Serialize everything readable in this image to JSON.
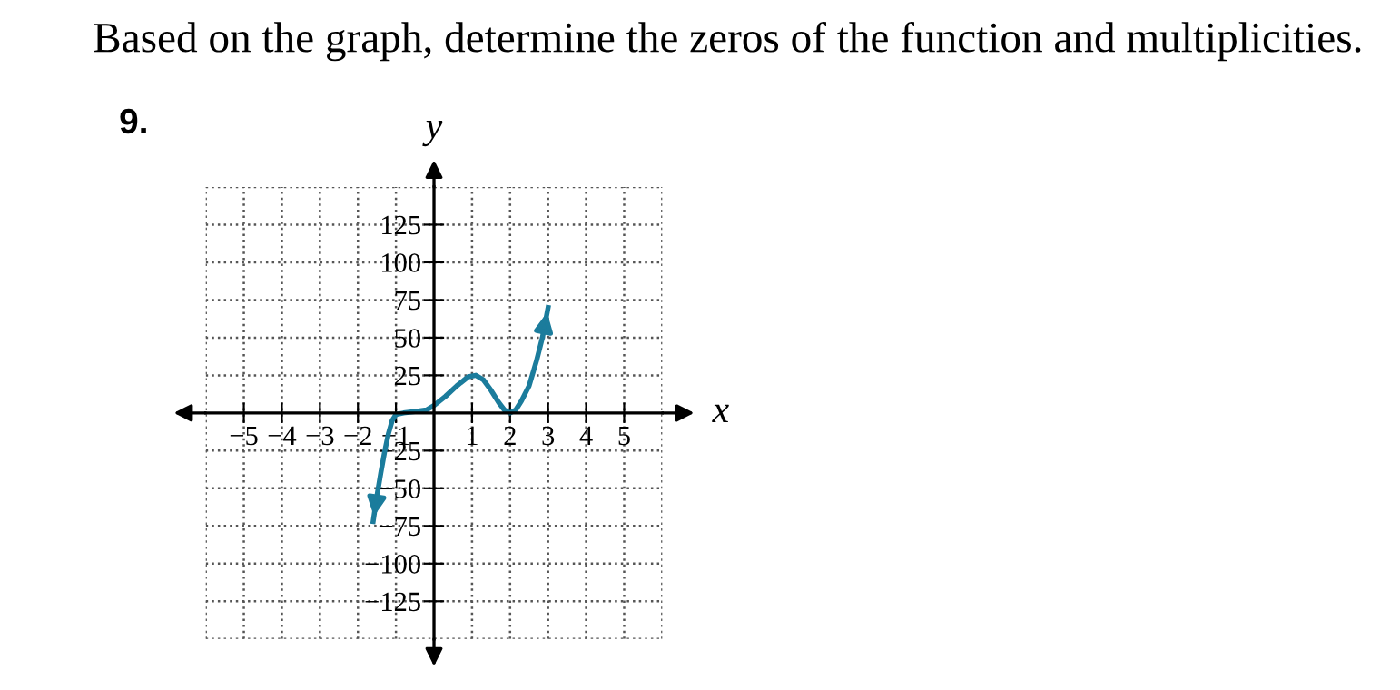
{
  "chart_data": {
    "type": "line",
    "title": "Based on the graph, determine the zeros of the function and multiplicities.",
    "annotations": [
      "9."
    ],
    "xlabel": "x",
    "ylabel": "y",
    "series": [
      {
        "color": "#1b7c9c",
        "x": [
          -1.6,
          -1.5,
          -1.4,
          -1.3,
          -1.2,
          -1.1,
          -1.0,
          -0.8,
          -0.5,
          -0.2,
          0,
          0.3,
          0.6,
          0.9,
          1.1,
          1.3,
          1.5,
          1.7,
          1.85,
          2.0,
          2.15,
          2.3,
          2.5,
          2.7,
          2.85,
          3.0
        ],
        "values": [
          -72,
          -55,
          -40,
          -26,
          -14,
          -5,
          -1,
          0,
          1,
          2,
          5,
          11,
          18,
          24,
          25,
          22,
          15,
          7,
          2,
          0,
          2,
          8,
          18,
          35,
          50,
          70
        ]
      }
    ],
    "xlim": [
      -6,
      6
    ],
    "ylim": [
      -150,
      150
    ],
    "xticks": [
      -5,
      -4,
      -3,
      -2,
      -1,
      1,
      2,
      3,
      4,
      5
    ],
    "yticks": [
      -125,
      -100,
      -75,
      -50,
      -25,
      25,
      50,
      75,
      100,
      125
    ],
    "grid": true,
    "line_style": "solid",
    "marker": "none"
  }
}
